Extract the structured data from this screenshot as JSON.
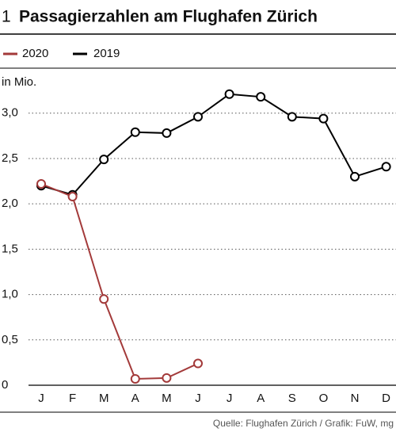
{
  "chart_data": {
    "type": "line",
    "figure_number": "1",
    "title": "Passagierzahlen am Flughafen Zürich",
    "y_label": "in Mio.",
    "source": "Quelle: Flughafen Zürich / Grafik: FuW, mg",
    "categories": [
      "J",
      "F",
      "M",
      "A",
      "M",
      "J",
      "J",
      "A",
      "S",
      "O",
      "N",
      "D"
    ],
    "series": [
      {
        "name": "2020",
        "color": "#a33a3a",
        "values": [
          2.22,
          2.08,
          0.95,
          0.07,
          0.08,
          0.24,
          null,
          null,
          null,
          null,
          null,
          null
        ]
      },
      {
        "name": "2019",
        "color": "#000000",
        "values": [
          2.2,
          2.1,
          2.49,
          2.79,
          2.78,
          2.96,
          3.21,
          3.18,
          2.96,
          2.94,
          2.3,
          2.41
        ]
      }
    ],
    "ylim": [
      0,
      3.4
    ],
    "yticks": [
      0,
      {
        "value": 0.5,
        "label": "0,5"
      },
      {
        "value": 1,
        "label": "1,0"
      },
      {
        "value": 1.5,
        "label": "1,5"
      },
      {
        "value": 2,
        "label": "2,0"
      },
      {
        "value": 2.5,
        "label": "2,5"
      },
      {
        "value": 3,
        "label": "3,0"
      }
    ],
    "grid": true
  }
}
